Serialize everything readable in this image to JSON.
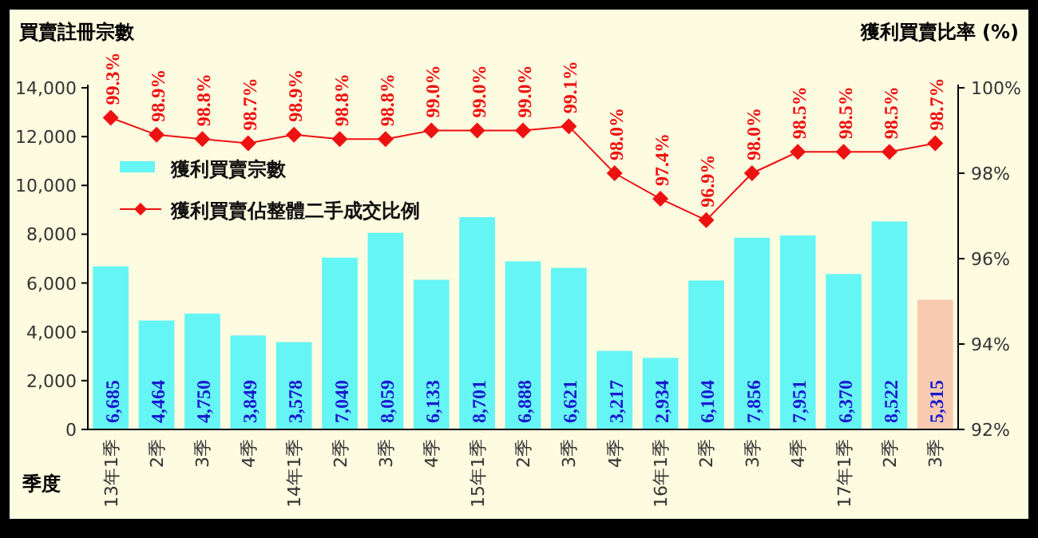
{
  "chart_data": {
    "type": "bar",
    "ylabel": "買賣註冊宗數",
    "y2label": "獲利買賣比率 (%)",
    "xlabel": "季度",
    "categories": [
      "13年1季",
      "2季",
      "3季",
      "4季",
      "14年1季",
      "2季",
      "3季",
      "4季",
      "15年1季",
      "2季",
      "3季",
      "4季",
      "16年1季",
      "2季",
      "3季",
      "4季",
      "17年1季",
      "2季",
      "3季"
    ],
    "series": [
      {
        "name": "獲利買賣宗數",
        "color": "#66f5f5",
        "colors": [
          "#66f5f5",
          "#66f5f5",
          "#66f5f5",
          "#66f5f5",
          "#66f5f5",
          "#66f5f5",
          "#66f5f5",
          "#66f5f5",
          "#66f5f5",
          "#66f5f5",
          "#66f5f5",
          "#66f5f5",
          "#66f5f5",
          "#66f5f5",
          "#66f5f5",
          "#66f5f5",
          "#66f5f5",
          "#66f5f5",
          "#f8cbb0"
        ],
        "values": [
          6685,
          4464,
          4750,
          3849,
          3578,
          7040,
          8059,
          6133,
          8701,
          6888,
          6621,
          3217,
          2934,
          6104,
          7856,
          7951,
          6370,
          8522,
          5315
        ],
        "value_labels": [
          "6,685",
          "4,464",
          "4,750",
          "3,849",
          "3,578",
          "7,040",
          "8,059",
          "6,133",
          "8,701",
          "6,888",
          "6,621",
          "3,217",
          "2,934",
          "6,104",
          "7,856",
          "7,951",
          "6,370",
          "8,522",
          "5,315"
        ]
      },
      {
        "name": "獲利買賣佔整體二手成交比例",
        "type": "line",
        "axis": "y2",
        "color": "#ee1111",
        "marker": "diamond",
        "values": [
          99.3,
          98.9,
          98.8,
          98.7,
          98.9,
          98.8,
          98.8,
          99.0,
          99.0,
          99.0,
          99.1,
          98.0,
          97.4,
          96.9,
          98.0,
          98.5,
          98.5,
          98.5,
          98.7
        ],
        "value_labels": [
          "99.3%",
          "98.9%",
          "98.8%",
          "98.7%",
          "98.9%",
          "98.8%",
          "98.8%",
          "99.0%",
          "99.0%",
          "99.0%",
          "99.1%",
          "98.0%",
          "97.4%",
          "96.9%",
          "98.0%",
          "98.5%",
          "98.5%",
          "98.5%",
          "98.7%"
        ]
      }
    ],
    "ylim": [
      0,
      14000
    ],
    "yticks": [
      0,
      {
        "value": 2000,
        "label": "2,000"
      },
      {
        "value": 4000,
        "label": "4,000"
      },
      {
        "value": 6000,
        "label": "6,000"
      },
      {
        "value": 8000,
        "label": "8,000"
      },
      {
        "value": 10000,
        "label": "10,000"
      },
      {
        "value": 12000,
        "label": "12,000"
      },
      {
        "value": 14000,
        "label": "14,000"
      }
    ],
    "y2lim": [
      92,
      100
    ],
    "y2ticks": [
      {
        "value": 92,
        "label": "92%"
      },
      {
        "value": 94,
        "label": "94%"
      },
      {
        "value": 96,
        "label": "96%"
      },
      {
        "value": 98,
        "label": "98%"
      },
      {
        "value": 100,
        "label": "100%"
      }
    ],
    "legend": "top left",
    "grid": false
  }
}
